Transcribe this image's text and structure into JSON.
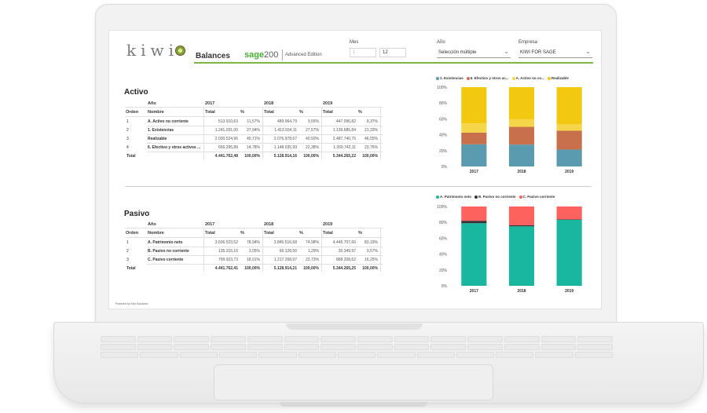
{
  "header": {
    "logo_text": "kiwi",
    "title": "Balances",
    "sage_brand": "sage",
    "sage_version": "200",
    "sage_edition": "Advanced Edition"
  },
  "filters": {
    "mes_label": "Mes",
    "mes_from": "1",
    "mes_to": "12",
    "anio_label": "Año",
    "anio_value": "Selección múltiple",
    "empresa_label": "Empresa",
    "empresa_value": "KIWI FOR SAGE"
  },
  "activo": {
    "title": "Activo",
    "col_anio": "Año",
    "col_orden": "Orden",
    "col_nombre": "Nombre",
    "years": [
      "2017",
      "2018",
      "2019"
    ],
    "col_total": "Total",
    "col_pct": "%",
    "rows": [
      {
        "orden": "1",
        "nombre": "A. Activo no corriente",
        "v": [
          "513.910,63",
          "11,57%",
          "489.964,79",
          "9,55%",
          "447.096,82",
          "8,37%"
        ]
      },
      {
        "orden": "2",
        "nombre": "1. Existencias",
        "v": [
          "1.241.031,00",
          "27,94%",
          "1.413.934,11",
          "27,57%",
          "1.139.685,84",
          "21,33%"
        ]
      },
      {
        "orden": "3",
        "nombre": "Realizable",
        "v": [
          "2.030.524,96",
          "45,71%",
          "2.076.978,67",
          "40,50%",
          "2.487.740,76",
          "46,55%"
        ]
      },
      {
        "orden": "4",
        "nombre": "6. Efectivo y otros activos ...",
        "v": [
          "656.295,89",
          "14,78%",
          "1.148.035,99",
          "22,38%",
          "1.269.742,11",
          "23,76%"
        ]
      }
    ],
    "total_label": "Total",
    "total": [
      "4.441.762,48",
      "100,00%",
      "5.128.914,16",
      "100,00%",
      "5.344.265,22",
      "100,00%"
    ]
  },
  "pasivo": {
    "title": "Pasivo",
    "col_anio": "Año",
    "col_orden": "Orden",
    "col_nombre": "Nombre",
    "years": [
      "2017",
      "2018",
      "2019"
    ],
    "col_total": "Total",
    "col_pct": "%",
    "rows": [
      {
        "orden": "1",
        "nombre": "A. Patrimonio neto",
        "v": [
          "3.506.523,52",
          "78,94%",
          "3.845.516,68",
          "74,98%",
          "4.445.707,66",
          "83,19%"
        ]
      },
      {
        "orden": "2",
        "nombre": "B. Pasivo no corriente",
        "v": [
          "135.315,16",
          "3,05%",
          "66.128,56",
          "1,29%",
          "30.349,97",
          "0,57%"
        ]
      },
      {
        "orden": "3",
        "nombre": "C. Pasivo corriente",
        "v": [
          "799.923,73",
          "18,01%",
          "1.217.268,97",
          "23,73%",
          "868.208,62",
          "16,25%"
        ]
      }
    ],
    "total_label": "Total",
    "total": [
      "4.441.762,41",
      "100,00%",
      "5.128.914,21",
      "100,00%",
      "5.344.265,25",
      "100,00%"
    ]
  },
  "chart_data": [
    {
      "type": "bar",
      "stacked": true,
      "categories": [
        "2017",
        "2018",
        "2019"
      ],
      "series": [
        {
          "name": "1. Existencias",
          "color": "#5b9bb0",
          "values": [
            27.94,
            27.57,
            21.33
          ]
        },
        {
          "name": "6. Efectivo y otros ac...",
          "color": "#c8704b",
          "values": [
            14.78,
            22.38,
            23.76
          ]
        },
        {
          "name": "A. Activo no co...",
          "color": "#f5d64a",
          "values": [
            11.57,
            9.55,
            8.37
          ]
        },
        {
          "name": "Realizable",
          "color": "#f2c811",
          "values": [
            45.71,
            40.5,
            46.55
          ]
        }
      ],
      "yticks": [
        "0%",
        "20%",
        "40%",
        "60%",
        "80%",
        "100%"
      ],
      "ylim": [
        0,
        100
      ]
    },
    {
      "type": "bar",
      "stacked": true,
      "categories": [
        "2017",
        "2018",
        "2019"
      ],
      "series": [
        {
          "name": "A. Patrimonio neto",
          "color": "#1ab7a0",
          "values": [
            78.94,
            74.98,
            83.19
          ]
        },
        {
          "name": "B. Pasivo no corriente",
          "color": "#333333",
          "values": [
            3.05,
            1.29,
            0.57
          ]
        },
        {
          "name": "C. Pasivo corriente",
          "color": "#fd625e",
          "values": [
            18.01,
            23.73,
            16.25
          ]
        }
      ],
      "yticks": [
        "0%",
        "20%",
        "40%",
        "60%",
        "80%",
        "100%"
      ],
      "ylim": [
        0,
        100
      ]
    }
  ],
  "footnote": "Powered by Kiwi Solutions"
}
